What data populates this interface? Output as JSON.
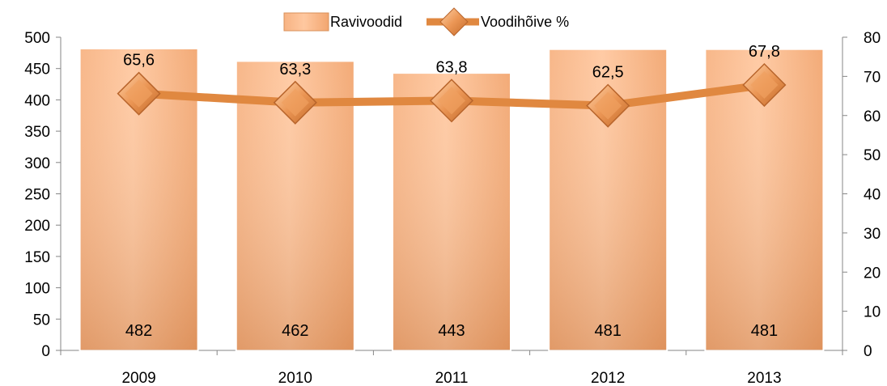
{
  "chart_data": {
    "type": "bar",
    "categories": [
      "2009",
      "2010",
      "2011",
      "2012",
      "2013"
    ],
    "series": [
      {
        "name": "Ravivoodid",
        "kind": "bar",
        "axis": "left",
        "values": [
          482,
          462,
          443,
          481,
          481
        ],
        "labels": [
          "482",
          "462",
          "443",
          "481",
          "481"
        ]
      },
      {
        "name": "Voodihõive %",
        "kind": "line",
        "axis": "right",
        "marker": "diamond",
        "values": [
          65.6,
          63.3,
          63.8,
          62.5,
          67.8
        ],
        "labels": [
          "65,6",
          "63,3",
          "63,8",
          "62,5",
          "67,8"
        ]
      }
    ],
    "y_left": {
      "min": 0,
      "max": 500,
      "step": 50,
      "ticks": [
        "0",
        "50",
        "100",
        "150",
        "200",
        "250",
        "300",
        "350",
        "400",
        "450",
        "500"
      ]
    },
    "y_right": {
      "min": 0,
      "max": 80,
      "step": 10,
      "ticks": [
        "0",
        "10",
        "20",
        "30",
        "40",
        "50",
        "60",
        "70",
        "80"
      ]
    },
    "grid": false,
    "legend_position": "top-center",
    "colors": {
      "bar_light": "#ffc59a",
      "bar_dark": "#e59660",
      "line": "#e08840",
      "marker": "#e48d4c",
      "axis": "#868686"
    }
  }
}
